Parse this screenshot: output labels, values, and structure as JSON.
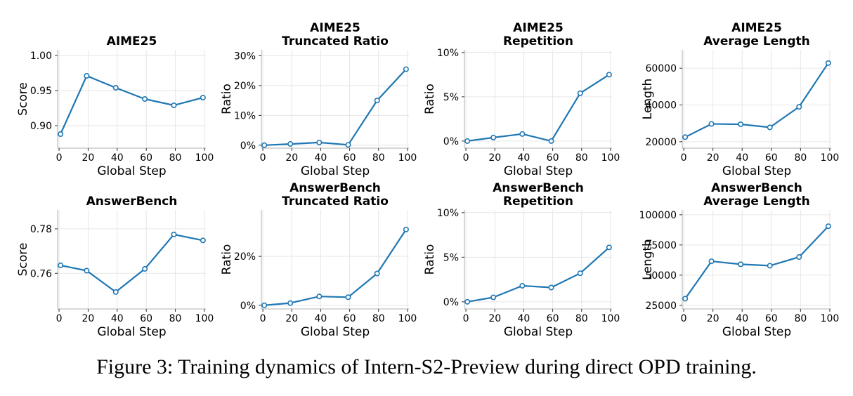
{
  "caption": "Figure 3: Training dynamics of Intern-S2-Preview during direct OPD training.",
  "colors": {
    "line": "#1f77b4",
    "axis": "#b0b0b0",
    "grid": "#e6e6e6",
    "text": "#000000"
  },
  "chart_data": [
    {
      "type": "line",
      "title": [
        "AIME25"
      ],
      "xlabel": "Global Step",
      "ylabel": "Score",
      "x": [
        1,
        19,
        39,
        59,
        79,
        99
      ],
      "series": [
        {
          "values": [
            0.888,
            0.971,
            0.954,
            0.938,
            0.929,
            0.94
          ]
        }
      ],
      "xticks": [
        0,
        20,
        40,
        60,
        80,
        100
      ],
      "xtick_labels": [
        "0",
        "20",
        "40",
        "60",
        "80",
        "100"
      ],
      "yticks": [
        0.9,
        0.95,
        1.0
      ],
      "ytick_labels": [
        "0.90",
        "0.95",
        "1.00"
      ],
      "xlim": [
        -1,
        101
      ],
      "ylim": [
        0.868,
        1.008
      ],
      "grid": true
    },
    {
      "type": "line",
      "title": [
        "AIME25",
        "Truncated Ratio"
      ],
      "xlabel": "Global Step",
      "ylabel": "Ratio",
      "x": [
        1,
        19,
        39,
        59,
        79,
        99
      ],
      "series": [
        {
          "values": [
            0.0,
            0.4,
            0.9,
            0.1,
            15.0,
            25.5
          ]
        }
      ],
      "xticks": [
        0,
        20,
        40,
        60,
        80,
        100
      ],
      "xtick_labels": [
        "0",
        "20",
        "40",
        "60",
        "80",
        "100"
      ],
      "yticks": [
        0,
        10,
        20,
        30
      ],
      "ytick_labels": [
        "0%",
        "10%",
        "20%",
        "30%"
      ],
      "xlim": [
        -1,
        101
      ],
      "ylim": [
        -1,
        32
      ],
      "grid": true
    },
    {
      "type": "line",
      "title": [
        "AIME25",
        "Repetition"
      ],
      "xlabel": "Global Step",
      "ylabel": "Ratio",
      "x": [
        1,
        19,
        39,
        59,
        79,
        99
      ],
      "series": [
        {
          "values": [
            0.0,
            0.4,
            0.8,
            0.0,
            5.4,
            7.5
          ]
        }
      ],
      "xticks": [
        0,
        20,
        40,
        60,
        80,
        100
      ],
      "xtick_labels": [
        "0",
        "20",
        "40",
        "60",
        "80",
        "100"
      ],
      "yticks": [
        0,
        5,
        10
      ],
      "ytick_labels": [
        "0%",
        "5%",
        "10%"
      ],
      "xlim": [
        -1,
        101
      ],
      "ylim": [
        -0.8,
        10.3
      ],
      "grid": true
    },
    {
      "type": "line",
      "title": [
        "AIME25",
        "Average Length"
      ],
      "xlabel": "Global Step",
      "ylabel": "Length",
      "x": [
        1,
        19,
        39,
        59,
        79,
        99
      ],
      "series": [
        {
          "values": [
            22500,
            29700,
            29500,
            27800,
            39000,
            62800
          ]
        }
      ],
      "xticks": [
        0,
        20,
        40,
        60,
        80,
        100
      ],
      "xtick_labels": [
        "0",
        "20",
        "40",
        "60",
        "80",
        "100"
      ],
      "yticks": [
        20000,
        40000,
        60000
      ],
      "ytick_labels": [
        "20000",
        "40000",
        "60000"
      ],
      "xlim": [
        -1,
        101
      ],
      "ylim": [
        16500,
        70000
      ],
      "grid": true
    },
    {
      "type": "line",
      "title": [
        "AnswerBench"
      ],
      "xlabel": "Global Step",
      "ylabel": "Score",
      "x": [
        1,
        19,
        39,
        59,
        79,
        99
      ],
      "series": [
        {
          "values": [
            0.7636,
            0.7612,
            0.7516,
            0.762,
            0.7775,
            0.7748
          ]
        }
      ],
      "xticks": [
        0,
        20,
        40,
        60,
        80,
        100
      ],
      "xtick_labels": [
        "0",
        "20",
        "40",
        "60",
        "80",
        "100"
      ],
      "yticks": [
        0.76,
        0.78
      ],
      "ytick_labels": [
        "0.76",
        "0.78"
      ],
      "xlim": [
        -1,
        101
      ],
      "ylim": [
        0.744,
        0.7885
      ],
      "grid": true
    },
    {
      "type": "line",
      "title": [
        "AnswerBench",
        "Truncated Ratio"
      ],
      "xlabel": "Global Step",
      "ylabel": "Ratio",
      "x": [
        1,
        19,
        39,
        59,
        79,
        99
      ],
      "series": [
        {
          "values": [
            0.0,
            0.9,
            3.6,
            3.3,
            13.0,
            31.0
          ]
        }
      ],
      "xticks": [
        0,
        20,
        40,
        60,
        80,
        100
      ],
      "xtick_labels": [
        "0",
        "20",
        "40",
        "60",
        "80",
        "100"
      ],
      "yticks": [
        0,
        20
      ],
      "ytick_labels": [
        "0%",
        "20%"
      ],
      "xlim": [
        -1,
        101
      ],
      "ylim": [
        -1.5,
        39
      ],
      "grid": true
    },
    {
      "type": "line",
      "title": [
        "AnswerBench",
        "Repetition"
      ],
      "xlabel": "Global Step",
      "ylabel": "Ratio",
      "x": [
        1,
        19,
        39,
        59,
        79,
        99
      ],
      "series": [
        {
          "values": [
            0.0,
            0.5,
            1.8,
            1.6,
            3.2,
            6.1
          ]
        }
      ],
      "xticks": [
        0,
        20,
        40,
        60,
        80,
        100
      ],
      "xtick_labels": [
        "0",
        "20",
        "40",
        "60",
        "80",
        "100"
      ],
      "yticks": [
        0,
        5,
        10
      ],
      "ytick_labels": [
        "0%",
        "5%",
        "10%"
      ],
      "xlim": [
        -1,
        101
      ],
      "ylim": [
        -0.8,
        10.3
      ],
      "grid": true
    },
    {
      "type": "line",
      "title": [
        "AnswerBench",
        "Average Length"
      ],
      "xlabel": "Global Step",
      "ylabel": "Length",
      "x": [
        1,
        19,
        39,
        59,
        79,
        99
      ],
      "series": [
        {
          "values": [
            30500,
            61500,
            59000,
            57800,
            65000,
            90500
          ]
        }
      ],
      "xticks": [
        0,
        20,
        40,
        60,
        80,
        100
      ],
      "xtick_labels": [
        "0",
        "20",
        "40",
        "60",
        "80",
        "100"
      ],
      "yticks": [
        25000,
        50000,
        75000,
        100000
      ],
      "ytick_labels": [
        "25000",
        "50000",
        "75000",
        "100000"
      ],
      "xlim": [
        -1,
        101
      ],
      "ylim": [
        22000,
        104000
      ],
      "grid": true
    }
  ]
}
